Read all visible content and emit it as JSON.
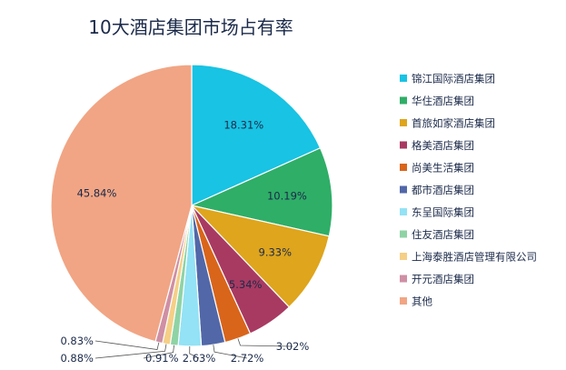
{
  "chart_data": {
    "type": "pie",
    "title": "10大酒店集团市场占有率",
    "legend_position": "right",
    "start_angle_deg": 0,
    "direction": "clockwise",
    "slices": [
      {
        "name": "锦江国际酒店集团",
        "value": 18.31,
        "label": "18.31%",
        "color": "#18c3e3"
      },
      {
        "name": "华住酒店集团",
        "value": 10.19,
        "label": "10.19%",
        "color": "#2fae67"
      },
      {
        "name": "首旅如家酒店集团",
        "value": 9.33,
        "label": "9.33%",
        "color": "#dea51d"
      },
      {
        "name": "格美酒店集团",
        "value": 5.34,
        "label": "5.34%",
        "color": "#a83a62"
      },
      {
        "name": "尚美生活集团",
        "value": 3.02,
        "label": "3.02%",
        "color": "#d9651b"
      },
      {
        "name": "都市酒店集团",
        "value": 2.72,
        "label": "2.72%",
        "color": "#5167a8"
      },
      {
        "name": "东呈国际集团",
        "value": 2.63,
        "label": "2.63%",
        "color": "#93e2f5"
      },
      {
        "name": "住友酒店集团",
        "value": 0.91,
        "label": "0.91%",
        "color": "#8fd3a5"
      },
      {
        "name": "上海泰胜酒店管理有限公司",
        "value": 0.88,
        "label": "0.88%",
        "color": "#f5cf86"
      },
      {
        "name": "开元酒店集团",
        "value": 0.83,
        "label": "0.83%",
        "color": "#cf8fa4"
      },
      {
        "name": "其他",
        "value": 45.84,
        "label": "45.84%",
        "color": "#f1a584"
      }
    ]
  }
}
